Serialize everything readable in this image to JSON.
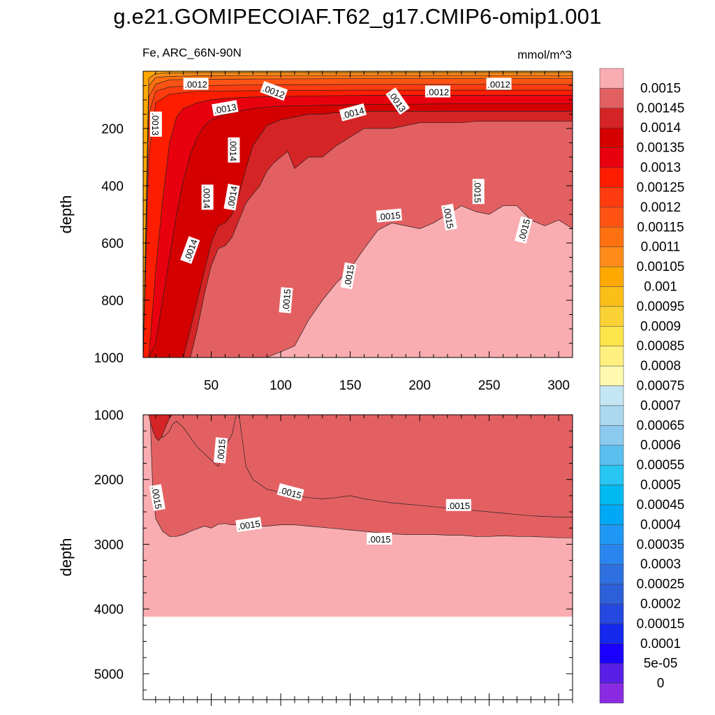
{
  "title": "g.e21.GOMIPECOIAF.T62_g17.CMIP6-omip1.001",
  "subtitle_left": "Fe, ARC_66N-90N",
  "subtitle_right": "mmol/m^3",
  "chart_data": {
    "type": "contour",
    "variable": "Fe",
    "region": "ARC_66N-90N",
    "units": "mmol/m^3",
    "x_range": [
      1,
      310
    ],
    "x_ticks": [
      50,
      100,
      150,
      200,
      250,
      300
    ],
    "panels": [
      {
        "name": "upper",
        "ylabel": "depth",
        "ylim": [
          0,
          1000
        ],
        "y_ticks": [
          200,
          400,
          600,
          800,
          1000
        ],
        "boundaries": [
          {
            "level": 0.0015,
            "x": [
              1,
              5,
              10,
              15,
              20,
              25,
              30,
              35,
              40,
              45,
              50,
              55,
              60,
              65,
              70,
              80,
              90,
              100,
              110,
              120,
              130,
              140,
              150,
              160,
              170,
              180,
              190,
              200,
              210,
              220,
              230,
              240,
              250,
              260,
              270,
              280,
              290,
              300,
              310
            ],
            "y": [
              1000,
              1000,
              1000,
              1000,
              1000,
              1000,
              1000,
              1000,
              1000,
              1000,
              1000,
              1000,
              1000,
              1000,
              1000,
              1000,
              1000,
              980,
              960,
              870,
              800,
              740,
              690,
              620,
              555,
              530,
              540,
              550,
              530,
              500,
              470,
              490,
              500,
              470,
              470,
              520,
              540,
              520,
              550
            ]
          },
          {
            "level": 0.00145,
            "x": [
              1,
              5,
              10,
              15,
              20,
              25,
              30,
              35,
              40,
              45,
              50,
              55,
              60,
              65,
              70,
              75,
              80,
              85,
              90,
              95,
              100,
              105,
              110,
              115,
              120,
              125,
              130,
              140,
              150,
              160,
              170,
              180,
              190,
              200,
              210,
              220,
              230,
              240,
              250,
              260,
              270,
              280,
              290,
              300,
              310
            ],
            "y": [
              1000,
              1000,
              1000,
              1000,
              1000,
              1000,
              1000,
              1000,
              900,
              780,
              680,
              620,
              610,
              580,
              520,
              460,
              430,
              400,
              350,
              320,
              300,
              280,
              340,
              320,
              300,
              300,
              300,
              260,
              230,
              200,
              200,
              200,
              190,
              180,
              180,
              180,
              180,
              175,
              175,
              175,
              175,
              175,
              175,
              175,
              175
            ]
          },
          {
            "level": 0.0014,
            "x": [
              1,
              5,
              10,
              15,
              20,
              25,
              30,
              35,
              40,
              45,
              50,
              55,
              60,
              65,
              70,
              75,
              80,
              90,
              100,
              110,
              120,
              130,
              140,
              150,
              160,
              170,
              180,
              190,
              200,
              210,
              220,
              230,
              240,
              250,
              260,
              270,
              280,
              290,
              300,
              310
            ],
            "y": [
              1000,
              1000,
              1000,
              1000,
              1000,
              1000,
              1000,
              900,
              800,
              700,
              600,
              540,
              530,
              500,
              430,
              340,
              260,
              190,
              170,
              160,
              150,
              150,
              145,
              145,
              140,
              140,
              140,
              140,
              140,
              140,
              140,
              140,
              140,
              140,
              140,
              140,
              140,
              140,
              140,
              140
            ]
          },
          {
            "level": 0.00135,
            "x": [
              1,
              5,
              10,
              15,
              20,
              25,
              30,
              35,
              40,
              45,
              50,
              60,
              70,
              80,
              90,
              100,
              120,
              140,
              160,
              180,
              200,
              220,
              240,
              260,
              280,
              300,
              310
            ],
            "y": [
              1000,
              1000,
              950,
              800,
              650,
              500,
              380,
              290,
              230,
              190,
              170,
              150,
              140,
              130,
              125,
              122,
              120,
              118,
              116,
              115,
              115,
              114,
              114,
              114,
              114,
              114,
              114
            ]
          },
          {
            "level": 0.0013,
            "x": [
              1,
              5,
              10,
              15,
              20,
              25,
              30,
              40,
              50,
              60,
              80,
              100,
              120,
              150,
              180,
              210,
              240,
              270,
              310
            ],
            "y": [
              1000,
              1000,
              700,
              450,
              250,
              160,
              130,
              110,
              100,
              95,
              90,
              88,
              86,
              85,
              84,
              84,
              84,
              84,
              84
            ]
          },
          {
            "level": 0.00125,
            "x": [
              1,
              5,
              10,
              20,
              40,
              80,
              150,
              220,
              310
            ],
            "y": [
              1000,
              300,
              110,
              80,
              70,
              68,
              66,
              66,
              66
            ]
          },
          {
            "level": 0.0012,
            "x": [
              1,
              5,
              10,
              20,
              40,
              80,
              150,
              220,
              310
            ],
            "y": [
              1000,
              150,
              70,
              55,
              50,
              48,
              46,
              46,
              46
            ]
          },
          {
            "level": 0.00115,
            "x": [
              1,
              5,
              10,
              20,
              40,
              80,
              150,
              220,
              310
            ],
            "y": [
              1000,
              90,
              45,
              30,
              28,
              27,
              26,
              26,
              26
            ]
          },
          {
            "level": 0.0011,
            "x": [
              1,
              5,
              10,
              20,
              40,
              80,
              150,
              220,
              310
            ],
            "y": [
              1000,
              50,
              22,
              18,
              16,
              15,
              15,
              15,
              15
            ]
          },
          {
            "level": 0.00105,
            "x": [
              1,
              5,
              10,
              20,
              40,
              80,
              150,
              220,
              310
            ],
            "y": [
              1000,
              25,
              8,
              6,
              5,
              5,
              5,
              5,
              5
            ]
          }
        ],
        "contour_labels": [
          {
            "text": ".0012",
            "x": 39,
            "y": 45,
            "angle": 0
          },
          {
            "text": ".0012",
            "x": 95,
            "y": 70,
            "angle": 20
          },
          {
            "text": ".0013",
            "x": 60,
            "y": 130,
            "angle": -10
          },
          {
            "text": ".0013",
            "x": 10,
            "y": 185,
            "angle": 90
          },
          {
            "text": ".0014",
            "x": 66,
            "y": 275,
            "angle": 90
          },
          {
            "text": ".0014",
            "x": 152,
            "y": 145,
            "angle": -15
          },
          {
            "text": ".0013",
            "x": 184,
            "y": 105,
            "angle": 55
          },
          {
            "text": ".0012",
            "x": 213,
            "y": 72,
            "angle": 0
          },
          {
            "text": ".0012",
            "x": 257,
            "y": 45,
            "angle": 0
          },
          {
            "text": ".0014",
            "x": 47,
            "y": 440,
            "angle": 90
          },
          {
            "text": ".0014",
            "x": 65,
            "y": 440,
            "angle": -80
          },
          {
            "text": ".0014",
            "x": 35,
            "y": 625,
            "angle": -70
          },
          {
            "text": ".0015",
            "x": 178,
            "y": 505,
            "angle": -5
          },
          {
            "text": ".0015",
            "x": 221,
            "y": 510,
            "angle": 80
          },
          {
            "text": ".0015",
            "x": 242,
            "y": 420,
            "angle": 90
          },
          {
            "text": ".0015",
            "x": 275,
            "y": 555,
            "angle": -75
          },
          {
            "text": ".0015",
            "x": 149,
            "y": 715,
            "angle": -80
          },
          {
            "text": ".0015",
            "x": 104,
            "y": 800,
            "angle": -85
          }
        ]
      },
      {
        "name": "lower",
        "ylabel": "depth",
        "ylim": [
          1000,
          5400
        ],
        "y_ticks": [
          1000,
          2000,
          3000,
          4000,
          5000
        ],
        "seafloor_depth": 4120,
        "boundaries": [
          {
            "level": 0.0015,
            "x": [
              5,
              6,
              8,
              10,
              15,
              20,
              25,
              30,
              35,
              40,
              45,
              50,
              55,
              60,
              65,
              70,
              75,
              80,
              90,
              100,
              110,
              120,
              130,
              140,
              150,
              160,
              170,
              180,
              190,
              200,
              210,
              220,
              230,
              240,
              250,
              260,
              270,
              280,
              290,
              300,
              310
            ],
            "y": [
              1000,
              1000,
              2200,
              2600,
              2800,
              2880,
              2880,
              2850,
              2800,
              2760,
              2720,
              2750,
              2690,
              2680,
              2700,
              2700,
              2720,
              2720,
              2720,
              2700,
              2700,
              2720,
              2740,
              2760,
              2780,
              2800,
              2820,
              2840,
              2850,
              2850,
              2850,
              2860,
              2860,
              2880,
              2880,
              2870,
              2880,
              2880,
              2890,
              2900,
              2900
            ]
          },
          {
            "level": 0.0015,
            "x": [
              8,
              10,
              12,
              15,
              18,
              20,
              22,
              25,
              30,
              40,
              50,
              55,
              60,
              65,
              68,
              70,
              75,
              80,
              90,
              100,
              110,
              120,
              130,
              140,
              150,
              160,
              170,
              180,
              190,
              200,
              210,
              220,
              230,
              240,
              250,
              260,
              270,
              280,
              290,
              300,
              310
            ],
            "y": [
              1000,
              1150,
              1250,
              1350,
              1300,
              1250,
              1150,
              1100,
              1200,
              1500,
              1700,
              1800,
              1500,
              1300,
              1000,
              1000,
              1800,
              2000,
              2150,
              2200,
              2250,
              2280,
              2300,
              2280,
              2250,
              2300,
              2330,
              2360,
              2380,
              2400,
              2420,
              2440,
              2460,
              2480,
              2500,
              2520,
              2540,
              2560,
              2570,
              2580,
              2580
            ]
          },
          {
            "level": 0.00145,
            "x": [
              5,
              6,
              8,
              10,
              12,
              14,
              15,
              16,
              18,
              20,
              22
            ],
            "y": [
              1000,
              1100,
              1250,
              1350,
              1400,
              1350,
              1300,
              1250,
              1150,
              1050,
              1000
            ]
          }
        ],
        "contour_labels": [
          {
            "text": ".0015",
            "x": 57,
            "y": 1550,
            "angle": -85
          },
          {
            "text": ".0015",
            "x": 11,
            "y": 2280,
            "angle": 80
          },
          {
            "text": ".0015",
            "x": 107,
            "y": 2200,
            "angle": 15
          },
          {
            "text": ".0015",
            "x": 228,
            "y": 2400,
            "angle": 0
          },
          {
            "text": ".0015",
            "x": 77,
            "y": 2700,
            "angle": -8
          },
          {
            "text": ".0015",
            "x": 171,
            "y": 2920,
            "angle": 0
          }
        ]
      }
    ],
    "colorbar": {
      "levels": [
        "0",
        "5e-05",
        "0.0001",
        "0.00015",
        "0.0002",
        "0.00025",
        "0.0003",
        "0.00035",
        "0.0004",
        "0.00045",
        "0.0005",
        "0.00055",
        "0.0006",
        "0.00065",
        "0.0007",
        "0.00075",
        "0.0008",
        "0.00085",
        "0.0009",
        "0.00095",
        "0.001",
        "0.00105",
        "0.0011",
        "0.00115",
        "0.0012",
        "0.00125",
        "0.0013",
        "0.00135",
        "0.0014",
        "0.00145",
        "0.0015"
      ],
      "colors": [
        "#8a2be2",
        "#5a1fe6",
        "#1a00ff",
        "#1428ee",
        "#2448e0",
        "#2c5fd8",
        "#2f70e0",
        "#2a86ee",
        "#1f98f5",
        "#00a8f5",
        "#00b9f0",
        "#27c6f3",
        "#5bbff0",
        "#8ccbef",
        "#aad8ee",
        "#c4e6f4",
        "#fff9b0",
        "#ffef7e",
        "#fde44b",
        "#fbd236",
        "#fcbf1a",
        "#ffa800",
        "#ff8c1a",
        "#ff7010",
        "#ff5314",
        "#ff3c10",
        "#ff1d00",
        "#e8000e",
        "#d40000",
        "#d42425",
        "#e36062",
        "#f9adb1"
      ]
    }
  }
}
